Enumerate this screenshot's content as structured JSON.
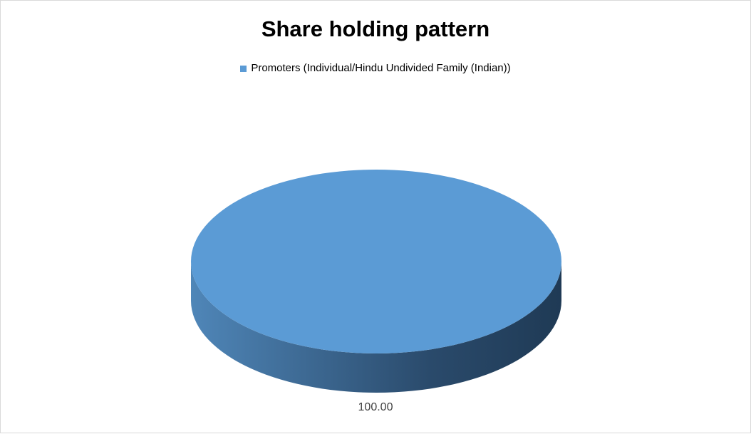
{
  "chart_data": {
    "type": "pie",
    "title": "Share holding pattern",
    "categories": [
      "Promoters (Individual/Hindu Undivided Family (Indian))"
    ],
    "values": [
      100.0
    ],
    "data_labels": [
      "100.00"
    ],
    "legend_position": "top",
    "style": "3d",
    "colors": {
      "top": "#5b9bd5",
      "side_light": "#4f86b8",
      "side_dark": "#1f3a55"
    }
  }
}
